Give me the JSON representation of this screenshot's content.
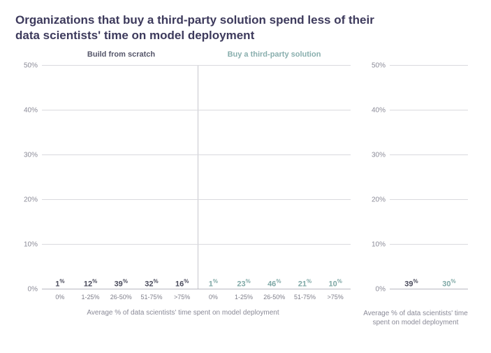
{
  "title": "Organizations that buy a third-party solution spend less of their data scientists' time on model deployment",
  "colors": {
    "title": "#3d3a5c",
    "series_a": "#5c5d70",
    "series_a_label": "#4a4b5c",
    "series_b": "#9fc2c0",
    "series_b_label": "#7fa8a6",
    "grid": "#d9d9de",
    "axis_text": "#8a8a97",
    "background": "#ffffff"
  },
  "y_axis": {
    "min": 0,
    "max": 50,
    "ticks": [
      0,
      10,
      20,
      30,
      40,
      50
    ]
  },
  "left_panel": {
    "subtitle_a": "Build from scratch",
    "subtitle_b": "Buy a third-party solution",
    "x_label": "Average % of data scientists' time spent on model deployment",
    "categories": [
      "0%",
      "1-25%",
      "26-50%",
      "51-75%",
      ">75%"
    ],
    "series_a_values": [
      1,
      12,
      39,
      32,
      16
    ],
    "series_b_values": [
      1,
      23,
      46,
      21,
      10
    ]
  },
  "right_panel": {
    "x_label": "Average % of data scientists' time spent on model deployment",
    "values": [
      39,
      30
    ]
  },
  "typography": {
    "title_fontsize": 17,
    "subtitle_fontsize": 11,
    "axis_fontsize": 10,
    "barlabel_fontsize": 11
  }
}
